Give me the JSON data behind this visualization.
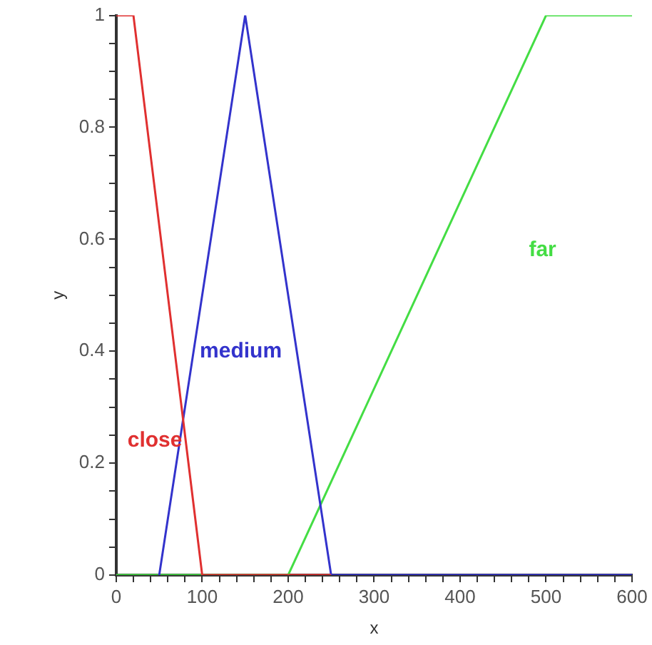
{
  "chart_data": {
    "type": "line",
    "xlabel": "x",
    "ylabel": "y",
    "xlim": [
      0,
      600
    ],
    "ylim": [
      0,
      1
    ],
    "xticks": [
      0,
      {
        "value": 20,
        "label": null
      },
      {
        "value": 40,
        "label": null
      },
      {
        "value": 60,
        "label": null
      },
      {
        "value": 80,
        "label": null
      },
      100,
      {
        "value": 120,
        "label": null
      },
      {
        "value": 140,
        "label": null
      },
      {
        "value": 160,
        "label": null
      },
      {
        "value": 180,
        "label": null
      },
      200,
      {
        "value": 220,
        "label": null
      },
      {
        "value": 240,
        "label": null
      },
      {
        "value": 260,
        "label": null
      },
      {
        "value": 280,
        "label": null
      },
      300,
      {
        "value": 320,
        "label": null
      },
      {
        "value": 340,
        "label": null
      },
      {
        "value": 360,
        "label": null
      },
      {
        "value": 380,
        "label": null
      },
      400,
      {
        "value": 420,
        "label": null
      },
      {
        "value": 440,
        "label": null
      },
      {
        "value": 460,
        "label": null
      },
      {
        "value": 480,
        "label": null
      },
      500,
      {
        "value": 520,
        "label": null
      },
      {
        "value": 540,
        "label": null
      },
      {
        "value": 560,
        "label": null
      },
      {
        "value": 580,
        "label": null
      },
      600
    ],
    "yticks": [
      0,
      {
        "value": 0.05,
        "label": null
      },
      {
        "value": 0.1,
        "label": null
      },
      {
        "value": 0.15,
        "label": null
      },
      0.2,
      {
        "value": 0.25,
        "label": null
      },
      {
        "value": 0.3,
        "label": null
      },
      {
        "value": 0.35,
        "label": null
      },
      0.4,
      {
        "value": 0.45,
        "label": null
      },
      {
        "value": 0.5,
        "label": null
      },
      {
        "value": 0.55,
        "label": null
      },
      0.6,
      {
        "value": 0.65,
        "label": null
      },
      {
        "value": 0.7,
        "label": null
      },
      {
        "value": 0.75,
        "label": null
      },
      0.8,
      {
        "value": 0.85,
        "label": null
      },
      {
        "value": 0.9,
        "label": null
      },
      {
        "value": 0.95,
        "label": null
      },
      1
    ],
    "grid": false,
    "legend": false,
    "marker": "none",
    "line_style": "solid",
    "series": [
      {
        "name": "close",
        "color": "#e03030",
        "x": [
          0,
          20,
          100,
          250
        ],
        "values": [
          1,
          1,
          0,
          0
        ]
      },
      {
        "name": "medium",
        "color": "#3333cc",
        "x": [
          50,
          150,
          250,
          600
        ],
        "values": [
          0,
          1,
          0,
          0
        ]
      },
      {
        "name": "far",
        "color": "#44dd44",
        "x": [
          0,
          200,
          500,
          600
        ],
        "values": [
          0,
          0,
          1,
          1
        ]
      }
    ]
  }
}
